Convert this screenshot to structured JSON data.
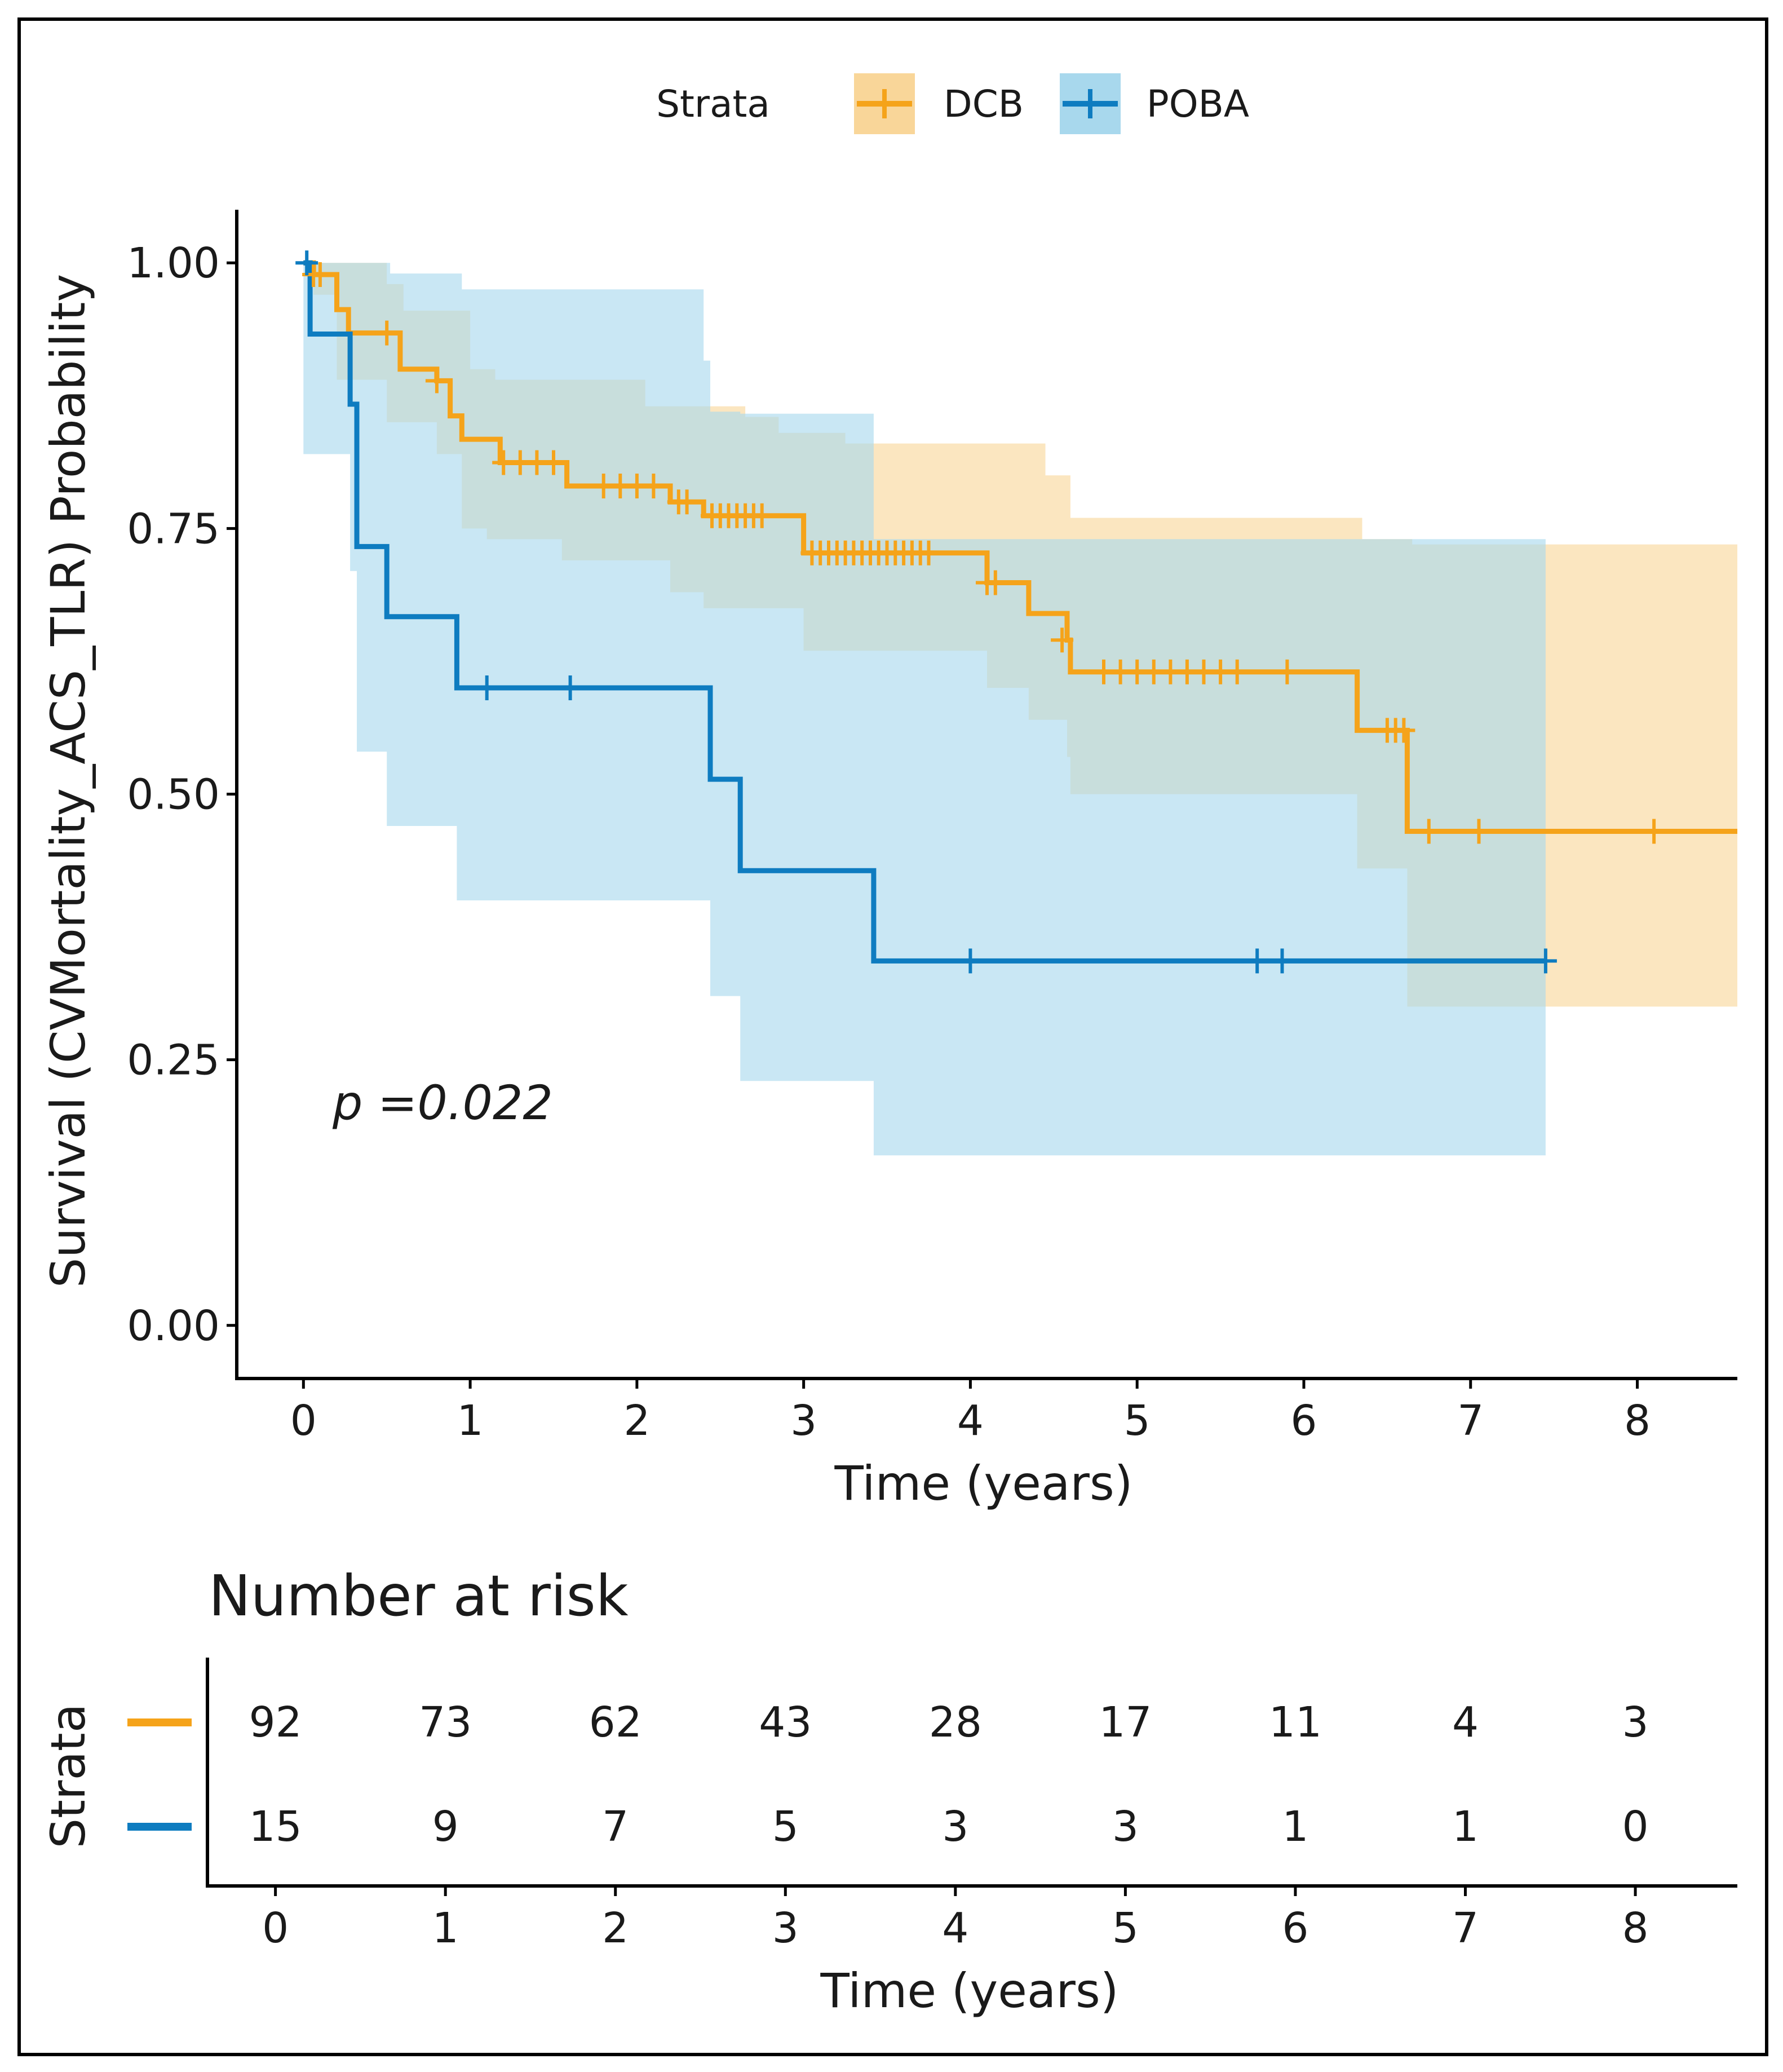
{
  "chart_data": {
    "type": "line",
    "subtype": "kaplan-meier survival curve with confidence bands",
    "xlabel": "Time (years)",
    "ylabel": "Survival (CVMortality_ACS_TLR)  Probability",
    "xlim": [
      -0.4,
      8.6
    ],
    "ylim": [
      -0.05,
      1.05
    ],
    "x_ticks": [
      0,
      1,
      2,
      3,
      4,
      5,
      6,
      7,
      8
    ],
    "y_ticks": [
      "0.00",
      "0.25",
      "0.50",
      "0.75",
      "1.00"
    ],
    "legend": {
      "title": "Strata",
      "position": "top"
    },
    "annotation": "p =0.022",
    "series": [
      {
        "name": "DCB",
        "color": "#f5a31a",
        "band_color": "#f9d699",
        "steps": [
          [
            0,
            1.0
          ],
          [
            0.06,
            0.989
          ],
          [
            0.2,
            0.956
          ],
          [
            0.27,
            0.934
          ],
          [
            0.5,
            0.934
          ],
          [
            0.58,
            0.9
          ],
          [
            0.8,
            0.889
          ],
          [
            0.88,
            0.856
          ],
          [
            0.95,
            0.834
          ],
          [
            1.1,
            0.834
          ],
          [
            1.18,
            0.812
          ],
          [
            1.55,
            0.812
          ],
          [
            1.58,
            0.79
          ],
          [
            2.15,
            0.79
          ],
          [
            2.2,
            0.775
          ],
          [
            2.35,
            0.775
          ],
          [
            2.4,
            0.762
          ],
          [
            2.95,
            0.762
          ],
          [
            3.0,
            0.727
          ],
          [
            4.05,
            0.727
          ],
          [
            4.1,
            0.699
          ],
          [
            4.3,
            0.699
          ],
          [
            4.35,
            0.67
          ],
          [
            4.55,
            0.67
          ],
          [
            4.58,
            0.645
          ],
          [
            4.6,
            0.615
          ],
          [
            6.3,
            0.615
          ],
          [
            6.32,
            0.56
          ],
          [
            6.6,
            0.56
          ],
          [
            6.62,
            0.465
          ],
          [
            8.6,
            0.465
          ]
        ],
        "band_upper": [
          [
            0,
            1.0
          ],
          [
            0.4,
            1.0
          ],
          [
            0.5,
            0.98
          ],
          [
            0.6,
            0.955
          ],
          [
            0.95,
            0.955
          ],
          [
            1.0,
            0.9
          ],
          [
            1.1,
            0.9
          ],
          [
            1.15,
            0.89
          ],
          [
            2.0,
            0.89
          ],
          [
            2.05,
            0.865
          ],
          [
            2.6,
            0.865
          ],
          [
            2.65,
            0.855
          ],
          [
            2.8,
            0.855
          ],
          [
            2.85,
            0.84
          ],
          [
            3.2,
            0.84
          ],
          [
            3.25,
            0.83
          ],
          [
            4.4,
            0.83
          ],
          [
            4.45,
            0.8
          ],
          [
            4.55,
            0.8
          ],
          [
            4.6,
            0.76
          ],
          [
            6.3,
            0.76
          ],
          [
            6.35,
            0.74
          ],
          [
            6.6,
            0.74
          ],
          [
            6.65,
            0.735
          ],
          [
            8.6,
            0.735
          ]
        ],
        "band_lower": [
          [
            0,
            1.0
          ],
          [
            0.06,
            0.97
          ],
          [
            0.2,
            0.89
          ],
          [
            0.5,
            0.85
          ],
          [
            0.8,
            0.82
          ],
          [
            0.95,
            0.75
          ],
          [
            1.1,
            0.74
          ],
          [
            1.55,
            0.72
          ],
          [
            2.2,
            0.69
          ],
          [
            2.4,
            0.675
          ],
          [
            3.0,
            0.635
          ],
          [
            4.1,
            0.6
          ],
          [
            4.35,
            0.57
          ],
          [
            4.58,
            0.535
          ],
          [
            4.6,
            0.5
          ],
          [
            6.3,
            0.5
          ],
          [
            6.32,
            0.43
          ],
          [
            6.62,
            0.3
          ],
          [
            8.6,
            0.3
          ]
        ]
      },
      {
        "name": "POBA",
        "color": "#0e7cc0",
        "band_color": "#a8d8ed",
        "steps": [
          [
            0,
            1.0
          ],
          [
            0.04,
            0.933
          ],
          [
            0.25,
            0.933
          ],
          [
            0.28,
            0.867
          ],
          [
            0.32,
            0.733
          ],
          [
            0.48,
            0.733
          ],
          [
            0.5,
            0.667
          ],
          [
            0.9,
            0.667
          ],
          [
            0.92,
            0.6
          ],
          [
            2.4,
            0.6
          ],
          [
            2.44,
            0.514
          ],
          [
            2.6,
            0.514
          ],
          [
            2.62,
            0.428
          ],
          [
            3.4,
            0.428
          ],
          [
            3.42,
            0.343
          ],
          [
            7.45,
            0.343
          ]
        ],
        "band_upper": [
          [
            0,
            1.0
          ],
          [
            0.5,
            1.0
          ],
          [
            0.52,
            0.99
          ],
          [
            0.92,
            0.99
          ],
          [
            0.95,
            0.975
          ],
          [
            1.8,
            0.975
          ],
          [
            2.4,
            0.908
          ],
          [
            2.44,
            0.86
          ],
          [
            2.62,
            0.858
          ],
          [
            3.42,
            0.74
          ],
          [
            7.45,
            0.74
          ]
        ],
        "band_lower": [
          [
            0,
            0.82
          ],
          [
            0.25,
            0.82
          ],
          [
            0.28,
            0.71
          ],
          [
            0.32,
            0.54
          ],
          [
            0.5,
            0.47
          ],
          [
            0.92,
            0.4
          ],
          [
            2.4,
            0.4
          ],
          [
            2.44,
            0.31
          ],
          [
            2.6,
            0.31
          ],
          [
            2.62,
            0.23
          ],
          [
            3.4,
            0.23
          ],
          [
            3.42,
            0.16
          ],
          [
            7.45,
            0.16
          ]
        ]
      }
    ],
    "censor_marks": {
      "DCB": [
        [
          0.06,
          0.989
        ],
        [
          0.1,
          0.989
        ],
        [
          0.5,
          0.934
        ],
        [
          0.8,
          0.889
        ],
        [
          1.2,
          0.812
        ],
        [
          1.3,
          0.812
        ],
        [
          1.4,
          0.812
        ],
        [
          1.5,
          0.812
        ],
        [
          1.8,
          0.79
        ],
        [
          1.9,
          0.79
        ],
        [
          2.0,
          0.79
        ],
        [
          2.1,
          0.79
        ],
        [
          2.25,
          0.775
        ],
        [
          2.3,
          0.775
        ],
        [
          2.45,
          0.762
        ],
        [
          2.5,
          0.762
        ],
        [
          2.55,
          0.762
        ],
        [
          2.6,
          0.762
        ],
        [
          2.65,
          0.762
        ],
        [
          2.7,
          0.762
        ],
        [
          2.75,
          0.762
        ],
        [
          3.05,
          0.727
        ],
        [
          3.1,
          0.727
        ],
        [
          3.15,
          0.727
        ],
        [
          3.2,
          0.727
        ],
        [
          3.25,
          0.727
        ],
        [
          3.3,
          0.727
        ],
        [
          3.35,
          0.727
        ],
        [
          3.4,
          0.727
        ],
        [
          3.45,
          0.727
        ],
        [
          3.5,
          0.727
        ],
        [
          3.55,
          0.727
        ],
        [
          3.6,
          0.727
        ],
        [
          3.65,
          0.727
        ],
        [
          3.7,
          0.727
        ],
        [
          3.75,
          0.727
        ],
        [
          4.1,
          0.699
        ],
        [
          4.15,
          0.699
        ],
        [
          4.55,
          0.645
        ],
        [
          4.8,
          0.615
        ],
        [
          4.9,
          0.615
        ],
        [
          5.0,
          0.615
        ],
        [
          5.1,
          0.615
        ],
        [
          5.2,
          0.615
        ],
        [
          5.3,
          0.615
        ],
        [
          5.4,
          0.615
        ],
        [
          5.5,
          0.615
        ],
        [
          5.6,
          0.615
        ],
        [
          5.9,
          0.615
        ],
        [
          6.5,
          0.56
        ],
        [
          6.55,
          0.56
        ],
        [
          6.6,
          0.56
        ],
        [
          6.75,
          0.465
        ],
        [
          7.05,
          0.465
        ],
        [
          8.1,
          0.465
        ]
      ],
      "POBA": [
        [
          0.02,
          1.0
        ],
        [
          1.1,
          0.6
        ],
        [
          1.6,
          0.6
        ],
        [
          4.0,
          0.343
        ],
        [
          5.72,
          0.343
        ],
        [
          5.87,
          0.343
        ],
        [
          7.45,
          0.343
        ]
      ]
    },
    "risk_table": {
      "title": "Number at risk",
      "row_label": "Strata",
      "xlabel": "Time (years)",
      "times": [
        0,
        1,
        2,
        3,
        4,
        5,
        6,
        7,
        8
      ],
      "rows": [
        {
          "name": "DCB",
          "counts": [
            92,
            73,
            62,
            43,
            28,
            17,
            11,
            4,
            3
          ]
        },
        {
          "name": "POBA",
          "counts": [
            15,
            9,
            7,
            5,
            3,
            3,
            1,
            1,
            0
          ]
        }
      ]
    }
  }
}
